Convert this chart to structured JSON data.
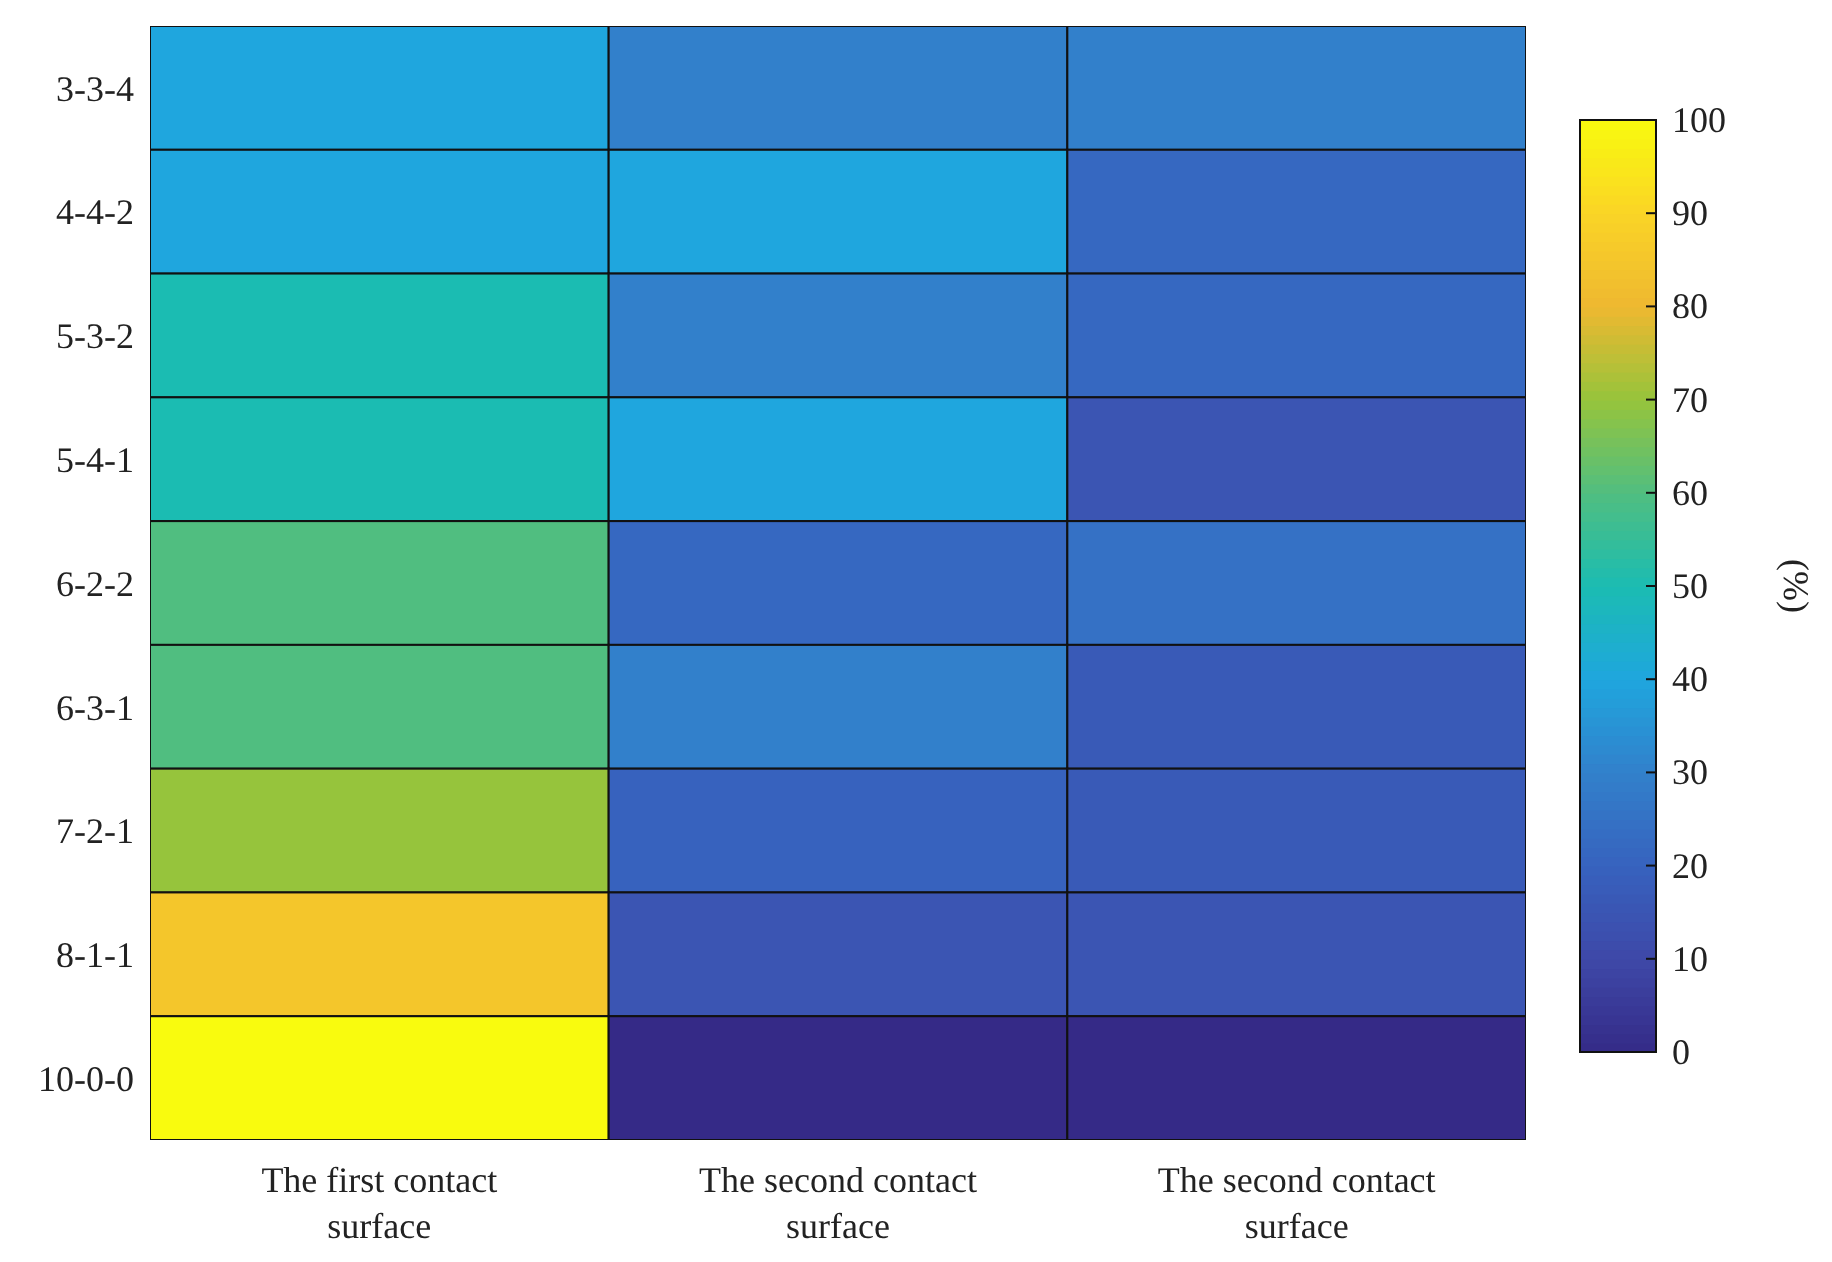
{
  "chart_data": {
    "type": "heatmap",
    "categories": [
      "The first contact surface",
      "The second contact surface",
      "The second contact surface"
    ],
    "y_categories": [
      "3-3-4",
      "4-4-2",
      "5-3-2",
      "5-4-1",
      "6-2-2",
      "6-3-1",
      "7-2-1",
      "8-1-1",
      "10-0-0"
    ],
    "cells": [
      [
        40,
        30,
        30
      ],
      [
        40,
        40,
        22
      ],
      [
        50,
        30,
        22
      ],
      [
        50,
        40,
        15
      ],
      [
        60,
        22,
        25
      ],
      [
        60,
        30,
        17
      ],
      [
        70,
        20,
        17
      ],
      [
        85,
        15,
        15
      ],
      [
        100,
        0,
        0
      ]
    ],
    "clim": [
      0,
      100
    ],
    "cticks": [
      0,
      10,
      20,
      30,
      40,
      50,
      60,
      70,
      80,
      90,
      100
    ],
    "clabel": "(%)"
  }
}
